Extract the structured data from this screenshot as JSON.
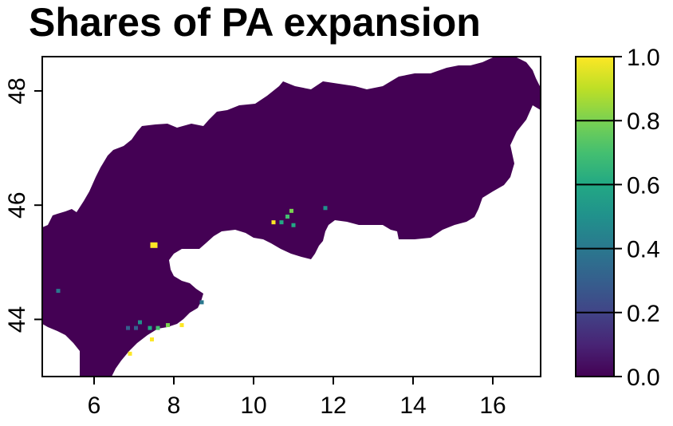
{
  "title": "Shares of PA expansion",
  "chart_data": {
    "type": "heatmap",
    "title": "Shares of PA expansion",
    "xlabel": "",
    "ylabel": "",
    "x_ticks": [
      6,
      8,
      10,
      12,
      14,
      16
    ],
    "y_ticks": [
      44,
      46,
      48
    ],
    "xlim": [
      4.7,
      17.2
    ],
    "ylim": [
      43.0,
      48.6
    ],
    "colorbar": {
      "ticks": [
        "0.0",
        "0.2",
        "0.4",
        "0.6",
        "0.8",
        "1.0"
      ],
      "range": [
        0,
        1
      ],
      "palette": "viridis",
      "colors": [
        "#440154",
        "#3b528b",
        "#21918c",
        "#5ec962",
        "#fde725"
      ]
    },
    "background_value": 0.0,
    "background_color": "#440154",
    "highlight_cells": [
      {
        "lon": 5.1,
        "lat": 44.5,
        "value": 0.35
      },
      {
        "lon": 7.5,
        "lat": 45.3,
        "value": 1.0
      },
      {
        "lon": 6.9,
        "lat": 43.4,
        "value": 1.0
      },
      {
        "lon": 6.85,
        "lat": 43.85,
        "value": 0.3
      },
      {
        "lon": 7.05,
        "lat": 43.85,
        "value": 0.25
      },
      {
        "lon": 7.15,
        "lat": 43.95,
        "value": 0.45
      },
      {
        "lon": 7.4,
        "lat": 43.85,
        "value": 0.55
      },
      {
        "lon": 7.6,
        "lat": 43.85,
        "value": 0.7
      },
      {
        "lon": 7.85,
        "lat": 43.9,
        "value": 0.75
      },
      {
        "lon": 8.2,
        "lat": 43.9,
        "value": 1.0
      },
      {
        "lon": 7.45,
        "lat": 43.65,
        "value": 1.0
      },
      {
        "lon": 8.7,
        "lat": 44.3,
        "value": 0.4
      },
      {
        "lon": 10.5,
        "lat": 45.7,
        "value": 1.0
      },
      {
        "lon": 10.7,
        "lat": 45.7,
        "value": 0.6
      },
      {
        "lon": 10.85,
        "lat": 45.8,
        "value": 0.65
      },
      {
        "lon": 10.95,
        "lat": 45.9,
        "value": 0.8
      },
      {
        "lon": 11.0,
        "lat": 45.65,
        "value": 0.55
      },
      {
        "lon": 11.8,
        "lat": 45.95,
        "value": 0.5
      }
    ]
  }
}
